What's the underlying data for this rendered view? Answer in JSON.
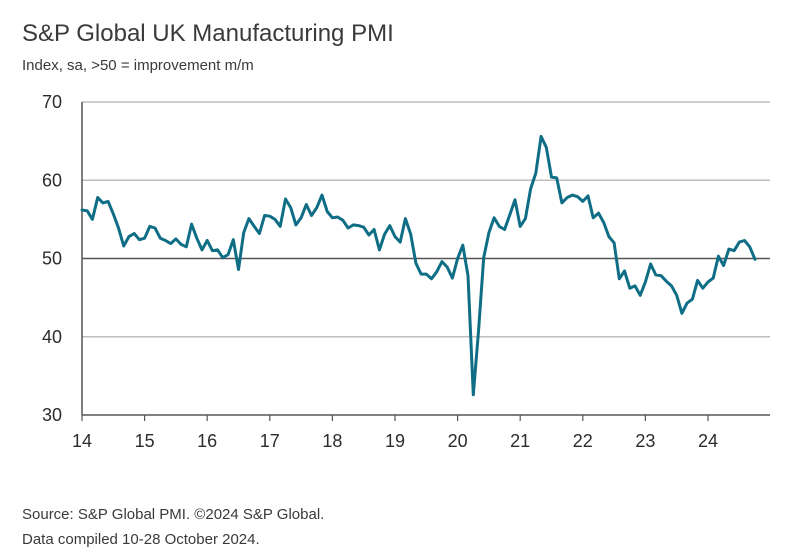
{
  "chart_data": {
    "type": "line",
    "title": "S&P Global UK Manufacturing PMI",
    "subtitle": "Index, sa, >50 = improvement m/m",
    "xlabel": "",
    "ylabel": "",
    "ylim": [
      30,
      70
    ],
    "yticks": [
      "30",
      "40",
      "50",
      "60",
      "70"
    ],
    "xticks": [
      "14",
      "15",
      "16",
      "17",
      "18",
      "19",
      "20",
      "21",
      "22",
      "23",
      "24"
    ],
    "grid": "horizontal",
    "reference_line": 50,
    "line_color": "#0f6e85",
    "series": [
      {
        "x_start": "2014-01",
        "x_step": "month",
        "values": [
          56.2,
          56.1,
          55.0,
          57.8,
          57.1,
          57.3,
          55.7,
          53.9,
          51.6,
          52.8,
          53.2,
          52.4,
          52.6,
          54.1,
          53.9,
          52.6,
          52.3,
          51.9,
          52.5,
          51.8,
          51.5,
          54.4,
          52.6,
          51.1,
          52.3,
          51.0,
          51.1,
          50.1,
          50.5,
          52.4,
          48.6,
          53.3,
          55.1,
          54.1,
          53.2,
          55.5,
          55.4,
          55.0,
          54.1,
          57.6,
          56.5,
          54.3,
          55.2,
          56.9,
          55.5,
          56.5,
          58.1,
          56.0,
          55.2,
          55.3,
          54.9,
          53.9,
          54.3,
          54.2,
          54.0,
          53.0,
          53.7,
          51.1,
          53.1,
          54.2,
          52.8,
          52.1,
          55.1,
          53.1,
          49.4,
          48.0,
          48.0,
          47.4,
          48.3,
          49.6,
          48.9,
          47.5,
          50.0,
          51.7,
          47.8,
          32.6,
          40.7,
          50.1,
          53.3,
          55.2,
          54.1,
          53.7,
          55.6,
          57.5,
          54.1,
          55.1,
          58.9,
          60.9,
          65.6,
          64.2,
          60.4,
          60.3,
          57.1,
          57.8,
          58.1,
          57.9,
          57.3,
          58.0,
          55.2,
          55.8,
          54.6,
          52.8,
          52.0,
          47.4,
          48.4,
          46.2,
          46.5,
          45.3,
          47.0,
          49.3,
          47.9,
          47.8,
          47.1,
          46.5,
          45.3,
          43.0,
          44.3,
          44.8,
          47.2,
          46.2,
          47.0,
          47.5,
          50.3,
          49.1,
          51.2,
          51.0,
          52.1,
          52.3,
          51.5,
          49.9
        ]
      }
    ]
  },
  "footer": {
    "source": "Source: S&P Global PMI. ©2024 S&P Global.",
    "compiled": "Data compiled 10-28 October 2024."
  }
}
